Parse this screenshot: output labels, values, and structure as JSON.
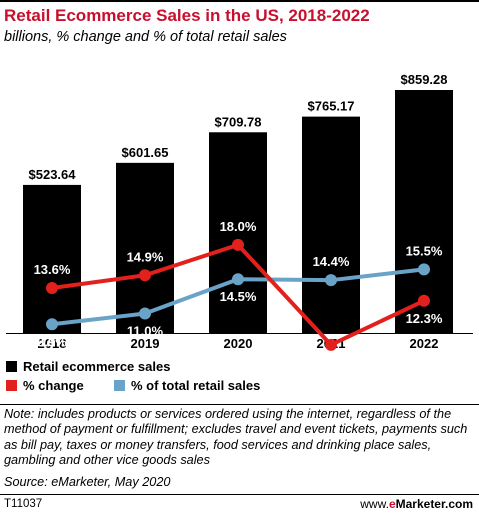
{
  "header": {
    "title": "Retail Ecommerce Sales in the US, 2018-2022",
    "subtitle": "billions, % change and % of total retail sales"
  },
  "chart_data": {
    "type": "bar",
    "categories": [
      "2018",
      "2019",
      "2020",
      "2021",
      "2022"
    ],
    "series": [
      {
        "name": "Retail ecommerce sales",
        "kind": "bar",
        "color": "#000000",
        "values": [
          523.64,
          601.65,
          709.78,
          765.17,
          859.28
        ],
        "labels": [
          "$523.64",
          "$601.65",
          "$709.78",
          "$765.17",
          "$859.28"
        ]
      },
      {
        "name": "% change",
        "kind": "line",
        "color": "#e2211c",
        "values": [
          13.6,
          14.9,
          18.0,
          7.8,
          12.3
        ],
        "labels": [
          "13.6%",
          "14.9%",
          "18.0%",
          "7.8%",
          "12.3%"
        ]
      },
      {
        "name": "% of total retail sales",
        "kind": "line",
        "color": "#6aa3c8",
        "values": [
          9.9,
          11.0,
          14.5,
          14.4,
          15.5
        ],
        "labels": [
          "9.9%",
          "11.0%",
          "14.5%",
          "14.4%",
          "15.5%"
        ]
      }
    ],
    "legend_position": "bottom-left"
  },
  "footer": {
    "note": "Note: includes products or services ordered using the internet, regardless of the method of payment or fulfillment; excludes travel and event tickets, payments such as bill pay, taxes or money transfers, food services and drinking place sales, gambling and other vice goods sales",
    "source": "Source: eMarketer, May 2020",
    "code": "T11037",
    "brand_prefix": "www.",
    "brand_e": "e",
    "brand_rest": "Marketer.com"
  }
}
